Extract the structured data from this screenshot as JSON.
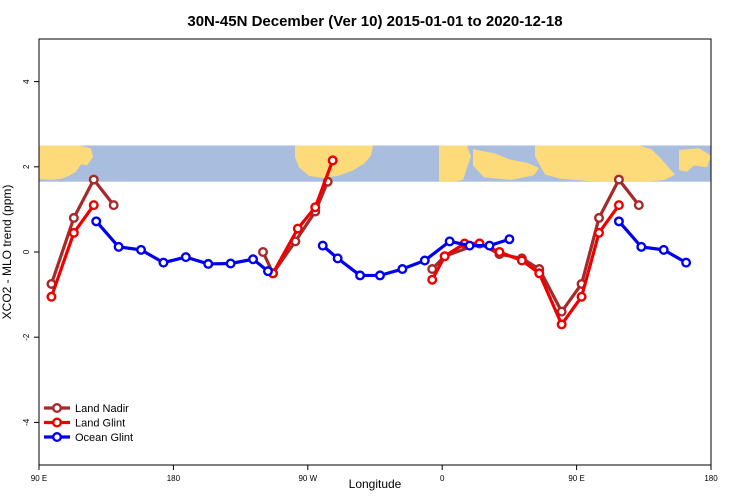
{
  "chart_data": {
    "type": "line",
    "title": "30N-45N December (Ver 10)   2015-01-01 to 2020-12-18",
    "xlabel": "Longitude",
    "ylabel": "XCO2 - MLO trend (ppm)",
    "xlim": [
      -90,
      180
    ],
    "ylim": [
      -5,
      5
    ],
    "x_ticks": [
      {
        "value": -90,
        "label": "90 E"
      },
      {
        "value": -36,
        "label": "180"
      },
      {
        "value": 18,
        "label": "90 W"
      },
      {
        "value": 72,
        "label": "0"
      },
      {
        "value": 126,
        "label": "90 E"
      },
      {
        "value": 180,
        "label": "180"
      }
    ],
    "y_ticks": [
      {
        "value": -4,
        "label": "-4"
      },
      {
        "value": -2,
        "label": "-2"
      },
      {
        "value": 0,
        "label": "0"
      },
      {
        "value": 2,
        "label": "2"
      },
      {
        "value": 4,
        "label": "4"
      }
    ],
    "map_band": {
      "y_range": [
        1.65,
        2.5
      ],
      "ocean_color": "#a9bede",
      "land_color": "#fedb7a"
    },
    "legend": {
      "position": "bottom-left"
    },
    "series": [
      {
        "name": "Land Nadir",
        "color": "#a52a2a",
        "segments": [
          [
            [
              -85,
              -0.75
            ],
            [
              -76,
              0.8
            ],
            [
              -68,
              1.7
            ],
            [
              -60,
              1.1
            ]
          ],
          [
            [
              0,
              0.0
            ],
            [
              4,
              -0.5
            ],
            [
              13,
              0.25
            ],
            [
              21,
              0.95
            ],
            [
              26,
              1.65
            ]
          ],
          [
            [
              68,
              -0.4
            ],
            [
              73,
              -0.1
            ],
            [
              87,
              0.2
            ],
            [
              95,
              -0.05
            ],
            [
              104,
              -0.15
            ],
            [
              111,
              -0.4
            ],
            [
              120,
              -1.4
            ],
            [
              128,
              -0.75
            ],
            [
              135,
              0.8
            ],
            [
              143,
              1.7
            ],
            [
              151,
              1.1
            ]
          ]
        ]
      },
      {
        "name": "Land Glint",
        "color": "#ee0000",
        "segments": [
          [
            [
              -85,
              -1.05
            ],
            [
              -76,
              0.45
            ],
            [
              -68,
              1.1
            ]
          ],
          [
            [
              4,
              -0.5
            ],
            [
              14,
              0.55
            ],
            [
              21,
              1.05
            ],
            [
              28,
              2.15
            ]
          ],
          [
            [
              68,
              -0.65
            ],
            [
              73,
              -0.1
            ],
            [
              81,
              0.2
            ],
            [
              87,
              0.2
            ],
            [
              95,
              0.0
            ],
            [
              104,
              -0.2
            ],
            [
              111,
              -0.5
            ],
            [
              120,
              -1.7
            ],
            [
              128,
              -1.05
            ],
            [
              135,
              0.45
            ],
            [
              143,
              1.1
            ]
          ]
        ]
      },
      {
        "name": "Ocean Glint",
        "color": "#0000ee",
        "segments": [
          [
            [
              -67,
              0.72
            ],
            [
              -58,
              0.12
            ],
            [
              -49,
              0.05
            ],
            [
              -40,
              -0.25
            ],
            [
              -31,
              -0.12
            ],
            [
              -22,
              -0.28
            ],
            [
              -13,
              -0.27
            ],
            [
              -4,
              -0.17
            ],
            [
              2,
              -0.45
            ]
          ],
          [
            [
              24,
              0.15
            ],
            [
              30,
              -0.15
            ],
            [
              39,
              -0.55
            ],
            [
              47,
              -0.55
            ],
            [
              56,
              -0.4
            ],
            [
              65,
              -0.2
            ],
            [
              75,
              0.25
            ],
            [
              83,
              0.15
            ],
            [
              91,
              0.15
            ],
            [
              99,
              0.3
            ]
          ],
          [
            [
              143,
              0.72
            ],
            [
              152,
              0.12
            ],
            [
              161,
              0.05
            ],
            [
              170,
              -0.25
            ]
          ]
        ]
      }
    ]
  }
}
